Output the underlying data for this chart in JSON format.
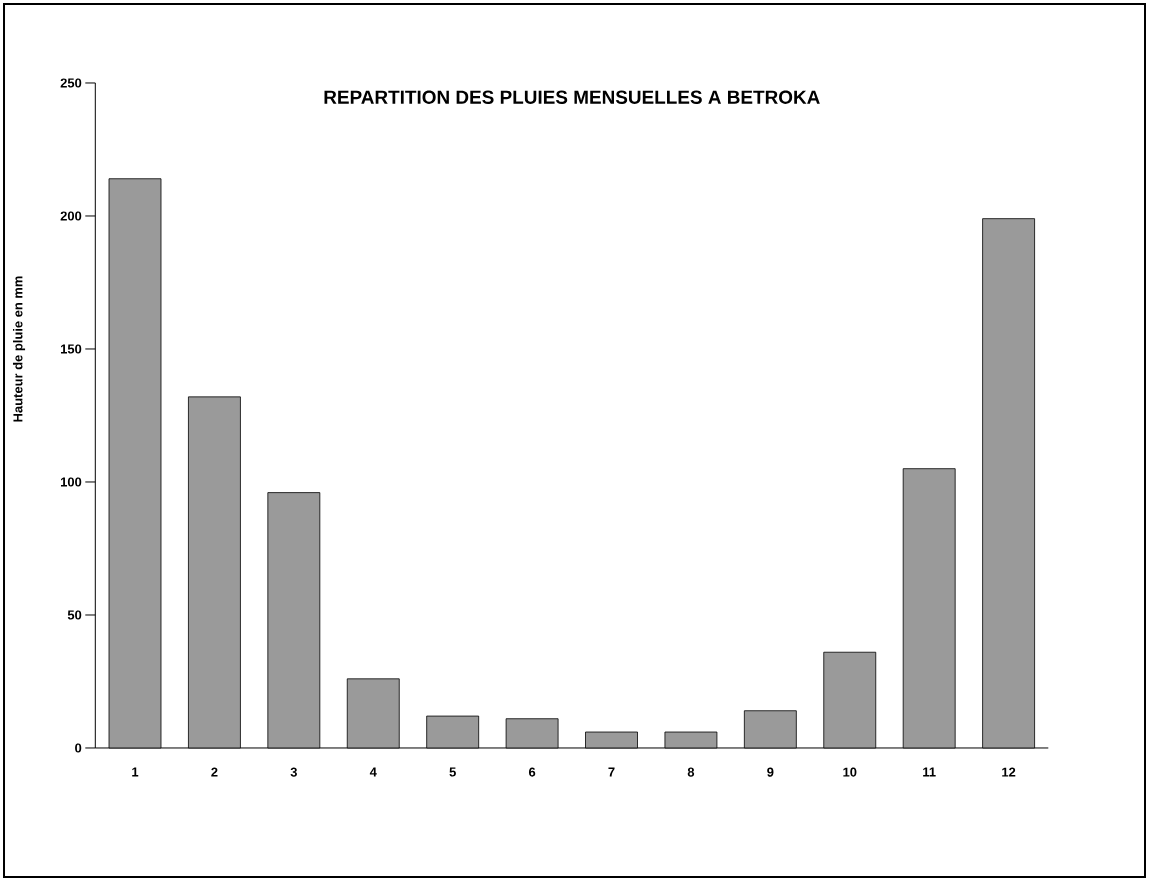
{
  "chart_data": {
    "type": "bar",
    "title": "REPARTITION DES PLUIES MENSUELLES A BETROKA",
    "ylabel": "Hauteur de pluie en mm",
    "categories": [
      "1",
      "2",
      "3",
      "4",
      "5",
      "6",
      "7",
      "8",
      "9",
      "10",
      "11",
      "12"
    ],
    "values": [
      214,
      132,
      96,
      26,
      12,
      11,
      6,
      6,
      14,
      36,
      105,
      199
    ],
    "color": "#9a9a9a",
    "ylim": [
      0,
      250
    ],
    "yticks": [
      0,
      50,
      100,
      150,
      200,
      250
    ],
    "grid": false
  }
}
